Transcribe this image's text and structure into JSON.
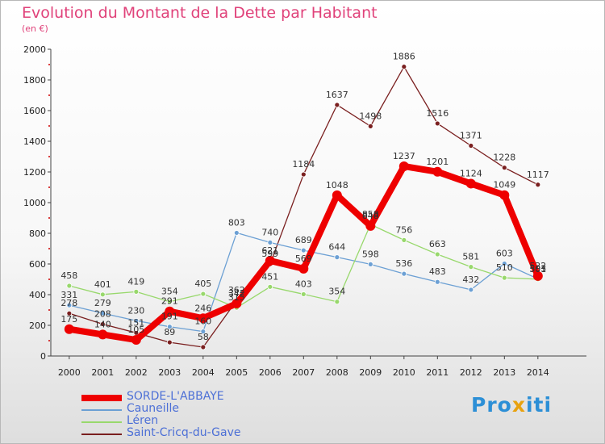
{
  "chart_data": {
    "type": "line",
    "title": "Evolution du Montant de la Dette par Habitant",
    "ylabel": "(en €)",
    "xlabel": "",
    "ylim": [
      0,
      2000
    ],
    "yticks": [
      0,
      200,
      400,
      600,
      800,
      1000,
      1200,
      1400,
      1600,
      1800,
      2000
    ],
    "categories": [
      "2000",
      "2001",
      "2002",
      "2003",
      "2004",
      "2005",
      "2006",
      "2007",
      "2008",
      "2009",
      "2010",
      "2011",
      "2012",
      "2013",
      "2014"
    ],
    "series": [
      {
        "name": "SORDE-L'ABBAYE",
        "color": "#ee0000",
        "values": [
          175,
          140,
          105,
          291,
          246,
          342,
          621,
          569,
          1048,
          848,
          1237,
          1201,
          1124,
          1049,
          522
        ]
      },
      {
        "name": "Cauneille",
        "color": "#6ca0d4",
        "values": [
          331,
          279,
          230,
          191,
          160,
          803,
          740,
          689,
          644,
          598,
          536,
          483,
          432,
          603,
          503
        ]
      },
      {
        "name": "Léren",
        "color": "#98d86c",
        "values": [
          458,
          401,
          419,
          354,
          405,
          315,
          451,
          403,
          354,
          858,
          756,
          663,
          581,
          510,
          501
        ]
      },
      {
        "name": "Saint-Cricq-du-Gave",
        "color": "#7a1f1f",
        "values": [
          278,
          208,
          151,
          89,
          58,
          362,
          599,
          1184,
          1637,
          1498,
          1886,
          1516,
          1371,
          1228,
          1117
        ]
      }
    ]
  },
  "logo_text": {
    "part1": "Pro",
    "part2": "x",
    "part3": "iti"
  }
}
